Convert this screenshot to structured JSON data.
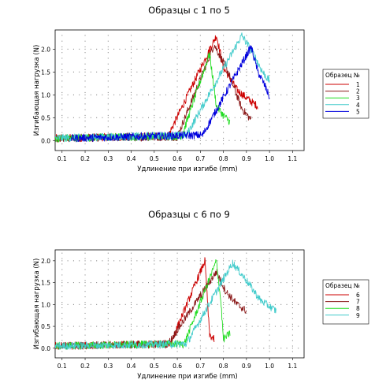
{
  "chart_data": [
    {
      "type": "line",
      "title": "Образцы с 1 по 5",
      "xlabel": "Удлинение при изгибе (mm)",
      "ylabel": "Изгибающая нагрузка (N)",
      "xlim": [
        0.07,
        1.15
      ],
      "ylim": [
        -0.22,
        2.42
      ],
      "xticks": [
        "0.1",
        "0.2",
        "0.3",
        "0.4",
        "0.5",
        "0.6",
        "0.7",
        "0.8",
        "0.9",
        "1.0",
        "1.1"
      ],
      "yticks": [
        "0.0",
        "0.5",
        "1.0",
        "1.5",
        "2.0"
      ],
      "grid": true,
      "legend_title": "Образец №",
      "legend_position": "right",
      "series": [
        {
          "name": "1",
          "color": "#cc0000",
          "x": [
            0.07,
            0.56,
            0.77,
            0.8,
            0.86,
            0.92,
            0.95
          ],
          "y": [
            0.05,
            0.1,
            2.3,
            1.6,
            1.1,
            0.85,
            0.75
          ]
        },
        {
          "name": "2",
          "color": "#8b1a1a",
          "x": [
            0.07,
            0.6,
            0.76,
            0.82,
            0.88,
            0.92
          ],
          "y": [
            0.05,
            0.08,
            2.1,
            1.5,
            0.7,
            0.45
          ]
        },
        {
          "name": "3",
          "color": "#22dd22",
          "x": [
            0.07,
            0.62,
            0.74,
            0.77,
            0.8,
            0.83
          ],
          "y": [
            0.05,
            0.1,
            1.9,
            0.75,
            0.55,
            0.4
          ]
        },
        {
          "name": "4",
          "color": "#44cccc",
          "x": [
            0.07,
            0.64,
            0.88,
            0.93,
            0.97,
            1.0
          ],
          "y": [
            0.05,
            0.12,
            2.3,
            1.9,
            1.5,
            1.3
          ]
        },
        {
          "name": "5",
          "color": "#0000dd",
          "x": [
            0.14,
            0.71,
            0.92,
            0.95,
            0.98,
            1.0
          ],
          "y": [
            0.05,
            0.12,
            2.05,
            1.5,
            1.2,
            0.95
          ]
        }
      ]
    },
    {
      "type": "line",
      "title": "Образцы с 6 по 9",
      "xlabel": "Удлинение при изгибе (mm)",
      "ylabel": "Изгибающая нагрузка (N)",
      "xlim": [
        0.07,
        1.15
      ],
      "ylim": [
        -0.22,
        2.25
      ],
      "xticks": [
        "0.1",
        "0.2",
        "0.3",
        "0.4",
        "0.5",
        "0.6",
        "0.7",
        "0.8",
        "0.9",
        "1.0",
        "1.1"
      ],
      "yticks": [
        "0.0",
        "0.5",
        "1.0",
        "1.5",
        "2.0"
      ],
      "grid": true,
      "legend_title": "Образец №",
      "legend_position": "right",
      "series": [
        {
          "name": "6",
          "color": "#cc0000",
          "x": [
            0.07,
            0.57,
            0.72,
            0.74,
            0.76
          ],
          "y": [
            0.05,
            0.1,
            2.0,
            0.3,
            0.2
          ]
        },
        {
          "name": "7",
          "color": "#8b1a1a",
          "x": [
            0.07,
            0.56,
            0.77,
            0.81,
            0.86,
            0.9
          ],
          "y": [
            0.05,
            0.1,
            1.75,
            1.3,
            1.0,
            0.85
          ]
        },
        {
          "name": "8",
          "color": "#22dd22",
          "x": [
            0.07,
            0.63,
            0.77,
            0.79,
            0.8,
            0.83
          ],
          "y": [
            0.05,
            0.1,
            2.0,
            1.0,
            0.2,
            0.35
          ]
        },
        {
          "name": "9",
          "color": "#44cccc",
          "x": [
            0.07,
            0.64,
            0.84,
            0.9,
            0.96,
            1.03
          ],
          "y": [
            0.05,
            0.1,
            1.95,
            1.55,
            1.1,
            0.85
          ]
        }
      ]
    }
  ]
}
